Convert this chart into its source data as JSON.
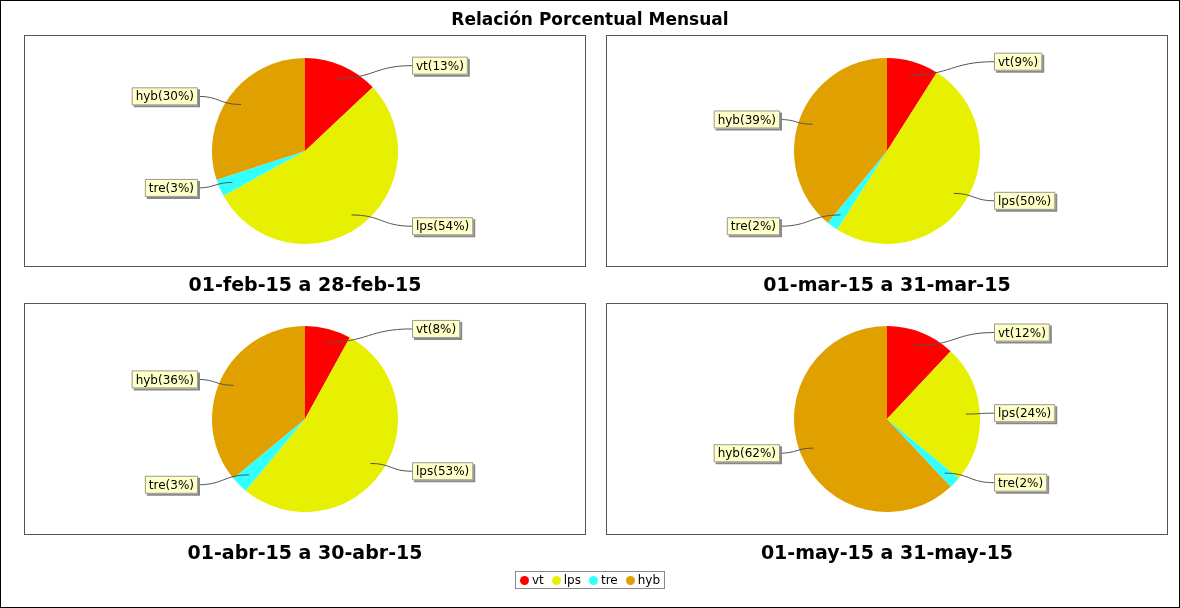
{
  "chart_data": [
    {
      "type": "pie",
      "title": "Relación Porcentual Mensual",
      "xlabel": "01-feb-15 a 28-feb-15",
      "categories": [
        "vt",
        "lps",
        "tre",
        "hyb"
      ],
      "values": [
        13,
        54,
        3,
        30
      ],
      "colors": [
        "#ff0000",
        "#e6f000",
        "#33ffff",
        "#e0a000"
      ],
      "value_labels": [
        "(13%)",
        "(54%)",
        "(3%)",
        "(30%)"
      ],
      "legend": "bottom"
    },
    {
      "type": "pie",
      "xlabel": "01-mar-15 a 31-mar-15",
      "categories": [
        "vt",
        "lps",
        "tre",
        "hyb"
      ],
      "values": [
        9,
        50,
        2,
        39
      ],
      "colors": [
        "#ff0000",
        "#e6f000",
        "#33ffff",
        "#e0a000"
      ],
      "value_labels": [
        "(9%)",
        "(50%)",
        "(2%)",
        "(39%)"
      ]
    },
    {
      "type": "pie",
      "xlabel": "01-abr-15 a 30-abr-15",
      "categories": [
        "vt",
        "lps",
        "tre",
        "hyb"
      ],
      "values": [
        8,
        53,
        3,
        36
      ],
      "colors": [
        "#ff0000",
        "#e6f000",
        "#33ffff",
        "#e0a000"
      ],
      "value_labels": [
        "(8%)",
        "(53%)",
        "(3%)",
        "(36%)"
      ]
    },
    {
      "type": "pie",
      "xlabel": "01-may-15 a 31-may-15",
      "categories": [
        "vt",
        "lps",
        "tre",
        "hyb"
      ],
      "values": [
        12,
        24,
        2,
        62
      ],
      "colors": [
        "#ff0000",
        "#e6f000",
        "#33ffff",
        "#e0a000"
      ],
      "value_labels": [
        "(12%)",
        "(24%)",
        "(2%)",
        "(62%)"
      ]
    }
  ]
}
